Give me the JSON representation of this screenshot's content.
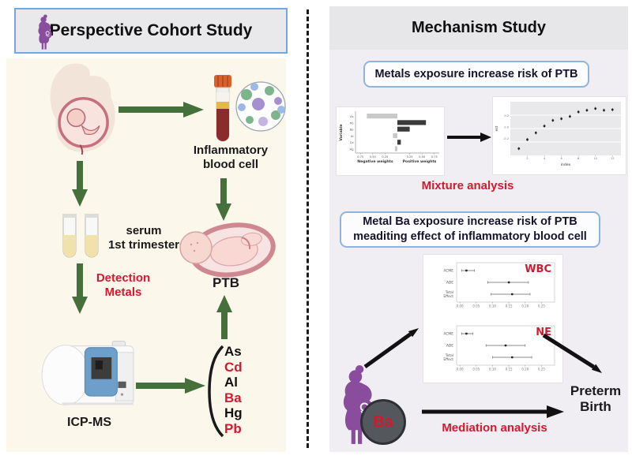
{
  "palette": {
    "arrow_green": "#45703c",
    "accent_red": "#d6182e",
    "purple": "#8a4d9e",
    "left_panel_bg": "#fbf7eb",
    "right_panel_bg": "#f0edf3",
    "header_gray": "#e8e7ea",
    "box_border_blue": "#8fb4dc",
    "ba_circle_fill": "#54585c"
  },
  "left": {
    "title": "Perspective Cohort Study",
    "inflammatory_label": "Inflammatory\nblood cell",
    "serum_label": "serum\n1st trimester",
    "detection_label": "Detection\nMetals",
    "ptb_label": "PTB",
    "icpms_label": "ICP-MS",
    "metals": [
      {
        "symbol": "As",
        "color": "#111111"
      },
      {
        "symbol": "Cd",
        "color": "#d6182e"
      },
      {
        "symbol": "Al",
        "color": "#111111"
      },
      {
        "symbol": "Ba",
        "color": "#d6182e"
      },
      {
        "symbol": "Hg",
        "color": "#111111"
      },
      {
        "symbol": "Pb",
        "color": "#d6182e"
      }
    ]
  },
  "right": {
    "title": "Mechanism Study",
    "finding1": "Metals exposure increase risk of PTB",
    "mixture_label": "Mixture analysis",
    "finding2": "Metal Ba exposure increase risk of PTB\nmeaditing effect of inflammatory blood cell",
    "mediation_label": "Mediation analysis",
    "preterm_label": "Preterm\nBirth",
    "ba_label": "Ba"
  },
  "chart_data": [
    {
      "type": "bar",
      "orientation": "horizontal",
      "categories": [
        "As",
        "Pb",
        "Ba",
        "Al",
        "Cd",
        "Hg"
      ],
      "values": [
        -0.62,
        0.58,
        0.25,
        -0.09,
        0.07,
        -0.05
      ],
      "xlabel_left": "Negative weights",
      "xlabel_right": "Positive weights",
      "ylabel": "Variable",
      "xlim": [
        -0.85,
        0.85
      ],
      "xticks": [
        -0.75,
        -0.5,
        -0.25,
        0.25,
        0.5,
        0.75
      ],
      "positive_color": "#3a3a3a",
      "negative_color": "#c9c9c9"
    },
    {
      "type": "scatter",
      "x": [
        1,
        2,
        3,
        4,
        5,
        6,
        7,
        8,
        9,
        10,
        11,
        12
      ],
      "y": [
        -0.38,
        -0.22,
        -0.1,
        0.02,
        0.12,
        0.15,
        0.19,
        0.27,
        0.3,
        0.33,
        0.3,
        0.31
      ],
      "xlabel": "index",
      "ylabel": "est",
      "xticks": [
        2,
        4,
        6,
        8,
        10,
        12
      ],
      "yticks": [
        -0.2,
        0,
        0.2
      ],
      "panel_bg": "#e9e9ec"
    },
    {
      "type": "forest",
      "title": "WBC",
      "title_color": "#d6182e",
      "rows": [
        {
          "label": "ACME",
          "est": 0.02,
          "lo": 0.005,
          "hi": 0.045
        },
        {
          "label": "ADE",
          "est": 0.15,
          "lo": 0.085,
          "hi": 0.21
        },
        {
          "label": "Total\nEffect",
          "est": 0.16,
          "lo": 0.095,
          "hi": 0.215
        }
      ],
      "xlim": [
        -0.01,
        0.29
      ],
      "xticks": [
        0,
        0.05,
        0.1,
        0.15,
        0.2,
        0.25
      ]
    },
    {
      "type": "forest",
      "title": "NE",
      "title_color": "#d6182e",
      "rows": [
        {
          "label": "ACME",
          "est": 0.02,
          "lo": 0.005,
          "hi": 0.04
        },
        {
          "label": "ADE",
          "est": 0.14,
          "lo": 0.08,
          "hi": 0.2
        },
        {
          "label": "Total\nEffect",
          "est": 0.16,
          "lo": 0.1,
          "hi": 0.22
        }
      ],
      "xlim": [
        -0.01,
        0.29
      ],
      "xticks": [
        0,
        0.05,
        0.1,
        0.15,
        0.2,
        0.25
      ]
    }
  ]
}
